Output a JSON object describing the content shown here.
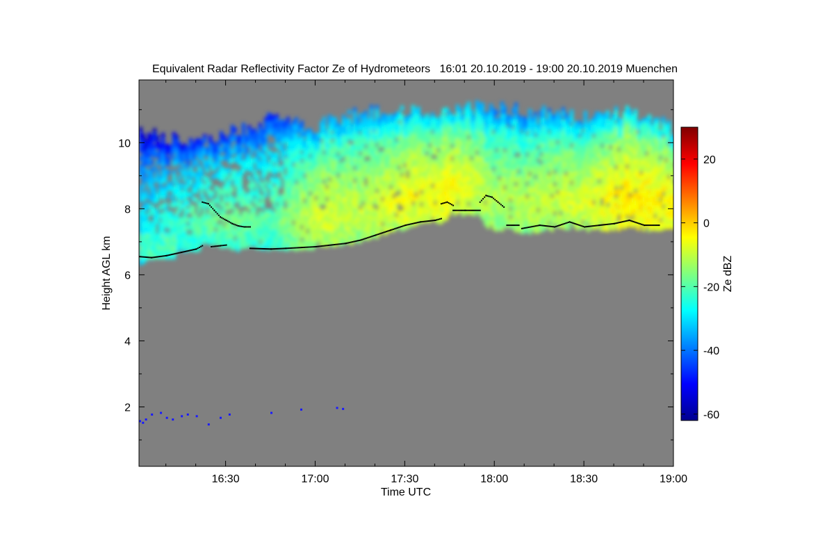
{
  "chart_data": {
    "type": "heatmap",
    "title": "Equivalent Radar Reflectivity Factor Ze of Hydrometeors   16:01 20.10.2019 - 19:00 20.10.2019 Muenchen",
    "xlabel": "Time UTC",
    "ylabel": "Height AGL km",
    "xlim": [
      "16:01",
      "19:00"
    ],
    "ylim": [
      0.2,
      11.9
    ],
    "x_ticks": [
      "16:30",
      "17:00",
      "17:30",
      "18:00",
      "18:30",
      "19:00"
    ],
    "y_ticks": [
      2,
      4,
      6,
      8,
      10
    ],
    "background_color": "#808080",
    "colorbar": {
      "label": "Ze dBZ",
      "range": [
        -62,
        30
      ],
      "ticks": [
        -60,
        -40,
        -20,
        0,
        20
      ],
      "colormap": "jet"
    },
    "series": [
      {
        "kind": "cloud-top",
        "x": [
          "16:01",
          "16:15",
          "16:25",
          "16:35",
          "16:40",
          "16:45",
          "17:00",
          "17:15",
          "17:30",
          "17:45",
          "18:00",
          "18:15",
          "18:30",
          "18:45",
          "19:00"
        ],
        "y": [
          10.4,
          10.0,
          10.1,
          10.4,
          10.5,
          10.8,
          10.5,
          10.9,
          10.9,
          11.0,
          11.1,
          10.9,
          10.8,
          11.0,
          10.4
        ]
      },
      {
        "kind": "cloud-base",
        "x": [
          "16:01",
          "16:10",
          "16:20",
          "16:22",
          "16:30",
          "16:35",
          "16:38",
          "16:50",
          "17:00",
          "17:10",
          "17:20",
          "17:30",
          "17:40",
          "17:42",
          "17:45",
          "17:55",
          "17:56",
          "17:58",
          "18:05",
          "18:08",
          "18:15",
          "18:25",
          "18:35",
          "18:45",
          "18:55",
          "19:00"
        ],
        "y": [
          6.4,
          6.8,
          6.8,
          7.0,
          6.9,
          6.8,
          6.9,
          6.8,
          6.9,
          7.0,
          7.2,
          7.5,
          7.7,
          7.6,
          7.9,
          7.9,
          7.6,
          7.4,
          7.5,
          7.3,
          7.4,
          7.5,
          7.4,
          7.5,
          7.4,
          7.5
        ]
      },
      {
        "kind": "max-reflectivity",
        "x": [
          "16:01",
          "16:15",
          "16:30",
          "16:45",
          "17:00",
          "17:15",
          "17:30",
          "17:45",
          "18:00",
          "18:15",
          "18:30",
          "18:45",
          "19:00"
        ],
        "y": [
          -28,
          -22,
          -18,
          -20,
          -8,
          -10,
          -6,
          -4,
          -12,
          -10,
          -8,
          -2,
          -4
        ]
      }
    ],
    "lines": [
      {
        "kind": "black-dotted-cloud-base-trace",
        "segments": [
          {
            "x": [
              "16:01",
              "16:05",
              "16:10",
              "16:15",
              "16:20",
              "16:22"
            ],
            "y": [
              6.55,
              6.52,
              6.58,
              6.68,
              6.78,
              6.88
            ]
          },
          {
            "x": [
              "16:22",
              "16:24",
              "16:26",
              "16:28",
              "16:30",
              "16:32",
              "16:34",
              "16:36",
              "16:38"
            ],
            "y": [
              8.2,
              8.15,
              7.95,
              7.75,
              7.65,
              7.55,
              7.48,
              7.45,
              7.45
            ]
          },
          {
            "x": [
              "16:25",
              "16:28",
              "16:30"
            ],
            "y": [
              6.85,
              6.88,
              6.9
            ]
          },
          {
            "x": [
              "16:38",
              "16:45",
              "16:50",
              "17:00",
              "17:10",
              "17:15",
              "17:20",
              "17:25",
              "17:30",
              "17:35",
              "17:40",
              "17:42"
            ],
            "y": [
              6.8,
              6.78,
              6.8,
              6.85,
              6.95,
              7.05,
              7.2,
              7.35,
              7.5,
              7.6,
              7.65,
              7.7
            ]
          },
          {
            "x": [
              "17:42",
              "17:44",
              "17:46"
            ],
            "y": [
              8.15,
              8.2,
              8.1
            ]
          },
          {
            "x": [
              "17:46",
              "17:50",
              "17:55"
            ],
            "y": [
              7.95,
              7.95,
              7.95
            ]
          },
          {
            "x": [
              "17:55",
              "17:57",
              "17:59",
              "18:01",
              "18:03"
            ],
            "y": [
              8.2,
              8.4,
              8.35,
              8.2,
              8.05
            ]
          },
          {
            "x": [
              "18:04",
              "18:08"
            ],
            "y": [
              7.5,
              7.5
            ]
          },
          {
            "x": [
              "18:09",
              "18:15",
              "18:20",
              "18:25",
              "18:30",
              "18:35",
              "18:40",
              "18:45",
              "18:50",
              "18:55"
            ],
            "y": [
              7.4,
              7.5,
              7.45,
              7.6,
              7.45,
              7.5,
              7.55,
              7.65,
              7.5,
              7.5
            ]
          }
        ]
      }
    ],
    "scatter": [
      {
        "kind": "blue-low-level-echoes",
        "x": [
          "16:01",
          "16:02",
          "16:03",
          "16:05",
          "16:08",
          "16:10",
          "16:12",
          "16:15",
          "16:17",
          "16:20",
          "16:24",
          "16:28",
          "16:31",
          "16:45",
          "16:55",
          "17:07",
          "17:09"
        ],
        "y": [
          1.6,
          1.55,
          1.65,
          1.8,
          1.85,
          1.7,
          1.65,
          1.75,
          1.8,
          1.75,
          1.5,
          1.7,
          1.8,
          1.85,
          1.95,
          2.0,
          1.97
        ]
      }
    ]
  }
}
